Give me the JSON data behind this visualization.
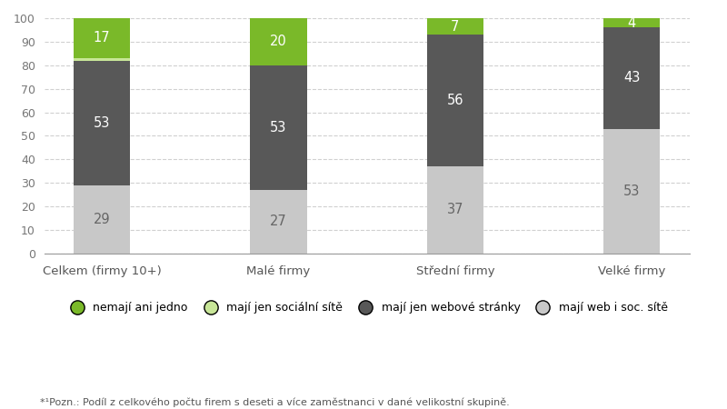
{
  "categories": [
    "Celkem (firmy 10+)",
    "Malé firmy",
    "Střední firmy",
    "Velké firmy"
  ],
  "segments": {
    "maji_web_soc": [
      29,
      27,
      37,
      53
    ],
    "maji_jen_web": [
      53,
      53,
      56,
      43
    ],
    "maji_jen_soc": [
      1,
      0,
      0,
      0
    ],
    "nemaji": [
      17,
      20,
      7,
      4
    ]
  },
  "colors": {
    "maji_web_soc": "#c8c8c8",
    "maji_jen_web": "#585858",
    "maji_jen_soc": "#c8e698",
    "nemaji": "#7ab929"
  },
  "legend_labels": [
    "nemají ani jedno",
    "mají jen sociální sítě",
    "mají jen webové stránky",
    "mají web i soc. sítě"
  ],
  "legend_colors": [
    "#7ab929",
    "#c8e698",
    "#585858",
    "#c8c8c8"
  ],
  "ylim": [
    0,
    100
  ],
  "yticks": [
    0,
    10,
    20,
    30,
    40,
    50,
    60,
    70,
    80,
    90,
    100
  ],
  "footnote": "*¹Pozn.: Podíl z celkového počtu firem s deseti a více zaměstnanci v dané velikostní skupině.",
  "background_color": "#ffffff",
  "bar_width": 0.32,
  "text_color_white": "#ffffff",
  "text_color_gray": "#888888",
  "text_color_dark_label": "#666666"
}
